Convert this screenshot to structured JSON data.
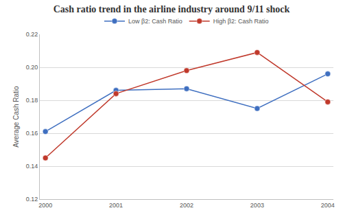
{
  "chart_data": {
    "type": "line",
    "title": "Cash ratio trend in the airline industry around 9/11 shock",
    "y_label": "Average Cash Ratio",
    "categories": [
      "2000",
      "2001",
      "2002",
      "2003",
      "2004"
    ],
    "series": [
      {
        "name": "Low β2: Cash Ratio",
        "color": "#3f6fc0",
        "values": [
          0.161,
          0.186,
          0.187,
          0.175,
          0.196
        ]
      },
      {
        "name": "High β2: Cash Ratio",
        "color": "#c0392b",
        "values": [
          0.145,
          0.184,
          0.198,
          0.209,
          0.179
        ]
      }
    ],
    "ylim": [
      0.12,
      0.22
    ],
    "yticks": [
      0.12,
      0.14,
      0.16,
      0.18,
      {
        "value": 0.2,
        "label": "0.20"
      },
      0.22
    ],
    "grid": true,
    "legend": "top",
    "marker": "circle",
    "line_style": "solid"
  }
}
